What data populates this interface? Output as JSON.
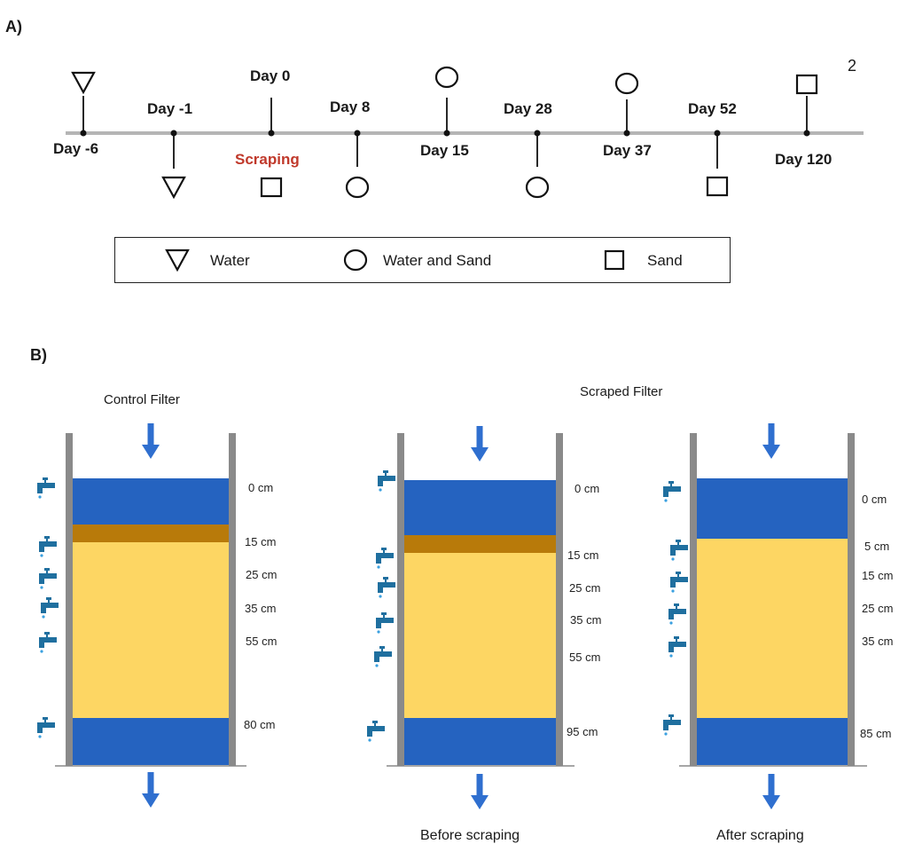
{
  "panel_a": {
    "label": "A)",
    "page_number": "2",
    "scraping_label": "Scraping",
    "events": [
      {
        "day": "Day -6",
        "sample": "Water"
      },
      {
        "day": "Day -1",
        "sample": "Water"
      },
      {
        "day": "Day 0",
        "sample": "Sand"
      },
      {
        "day": "Day 8",
        "sample": "Water and Sand"
      },
      {
        "day": "Day 15",
        "sample": "Water and Sand"
      },
      {
        "day": "Day 28",
        "sample": "Water and Sand"
      },
      {
        "day": "Day 37",
        "sample": "Water and Sand"
      },
      {
        "day": "Day 52",
        "sample": "Sand"
      },
      {
        "day": "Day 120",
        "sample": "Sand"
      }
    ],
    "legend": {
      "water": "Water",
      "water_sand": "Water and Sand",
      "sand": "Sand"
    }
  },
  "panel_b": {
    "label": "B)",
    "control_title": "Control Filter",
    "scraped_title": "Scraped Filter",
    "control_depths": [
      "0 cm",
      "15 cm",
      "25 cm",
      "35 cm",
      "55 cm",
      "80 cm"
    ],
    "before_depths": [
      "0 cm",
      "15 cm",
      "25 cm",
      "35 cm",
      "55 cm",
      "95 cm"
    ],
    "after_depths": [
      "0 cm",
      "5 cm",
      "15 cm",
      "25 cm",
      "35 cm",
      "85 cm"
    ],
    "before_caption": "Before scraping",
    "after_caption": "After scraping"
  },
  "colors": {
    "water": "#2563c0",
    "schmutzdecke": "#b87a0a",
    "sand": "#fdd663",
    "wall": "#8a8a8a",
    "arrow": "#2f6fcf",
    "tap": "#1f6f9f",
    "scraping_text": "#c0392b"
  }
}
